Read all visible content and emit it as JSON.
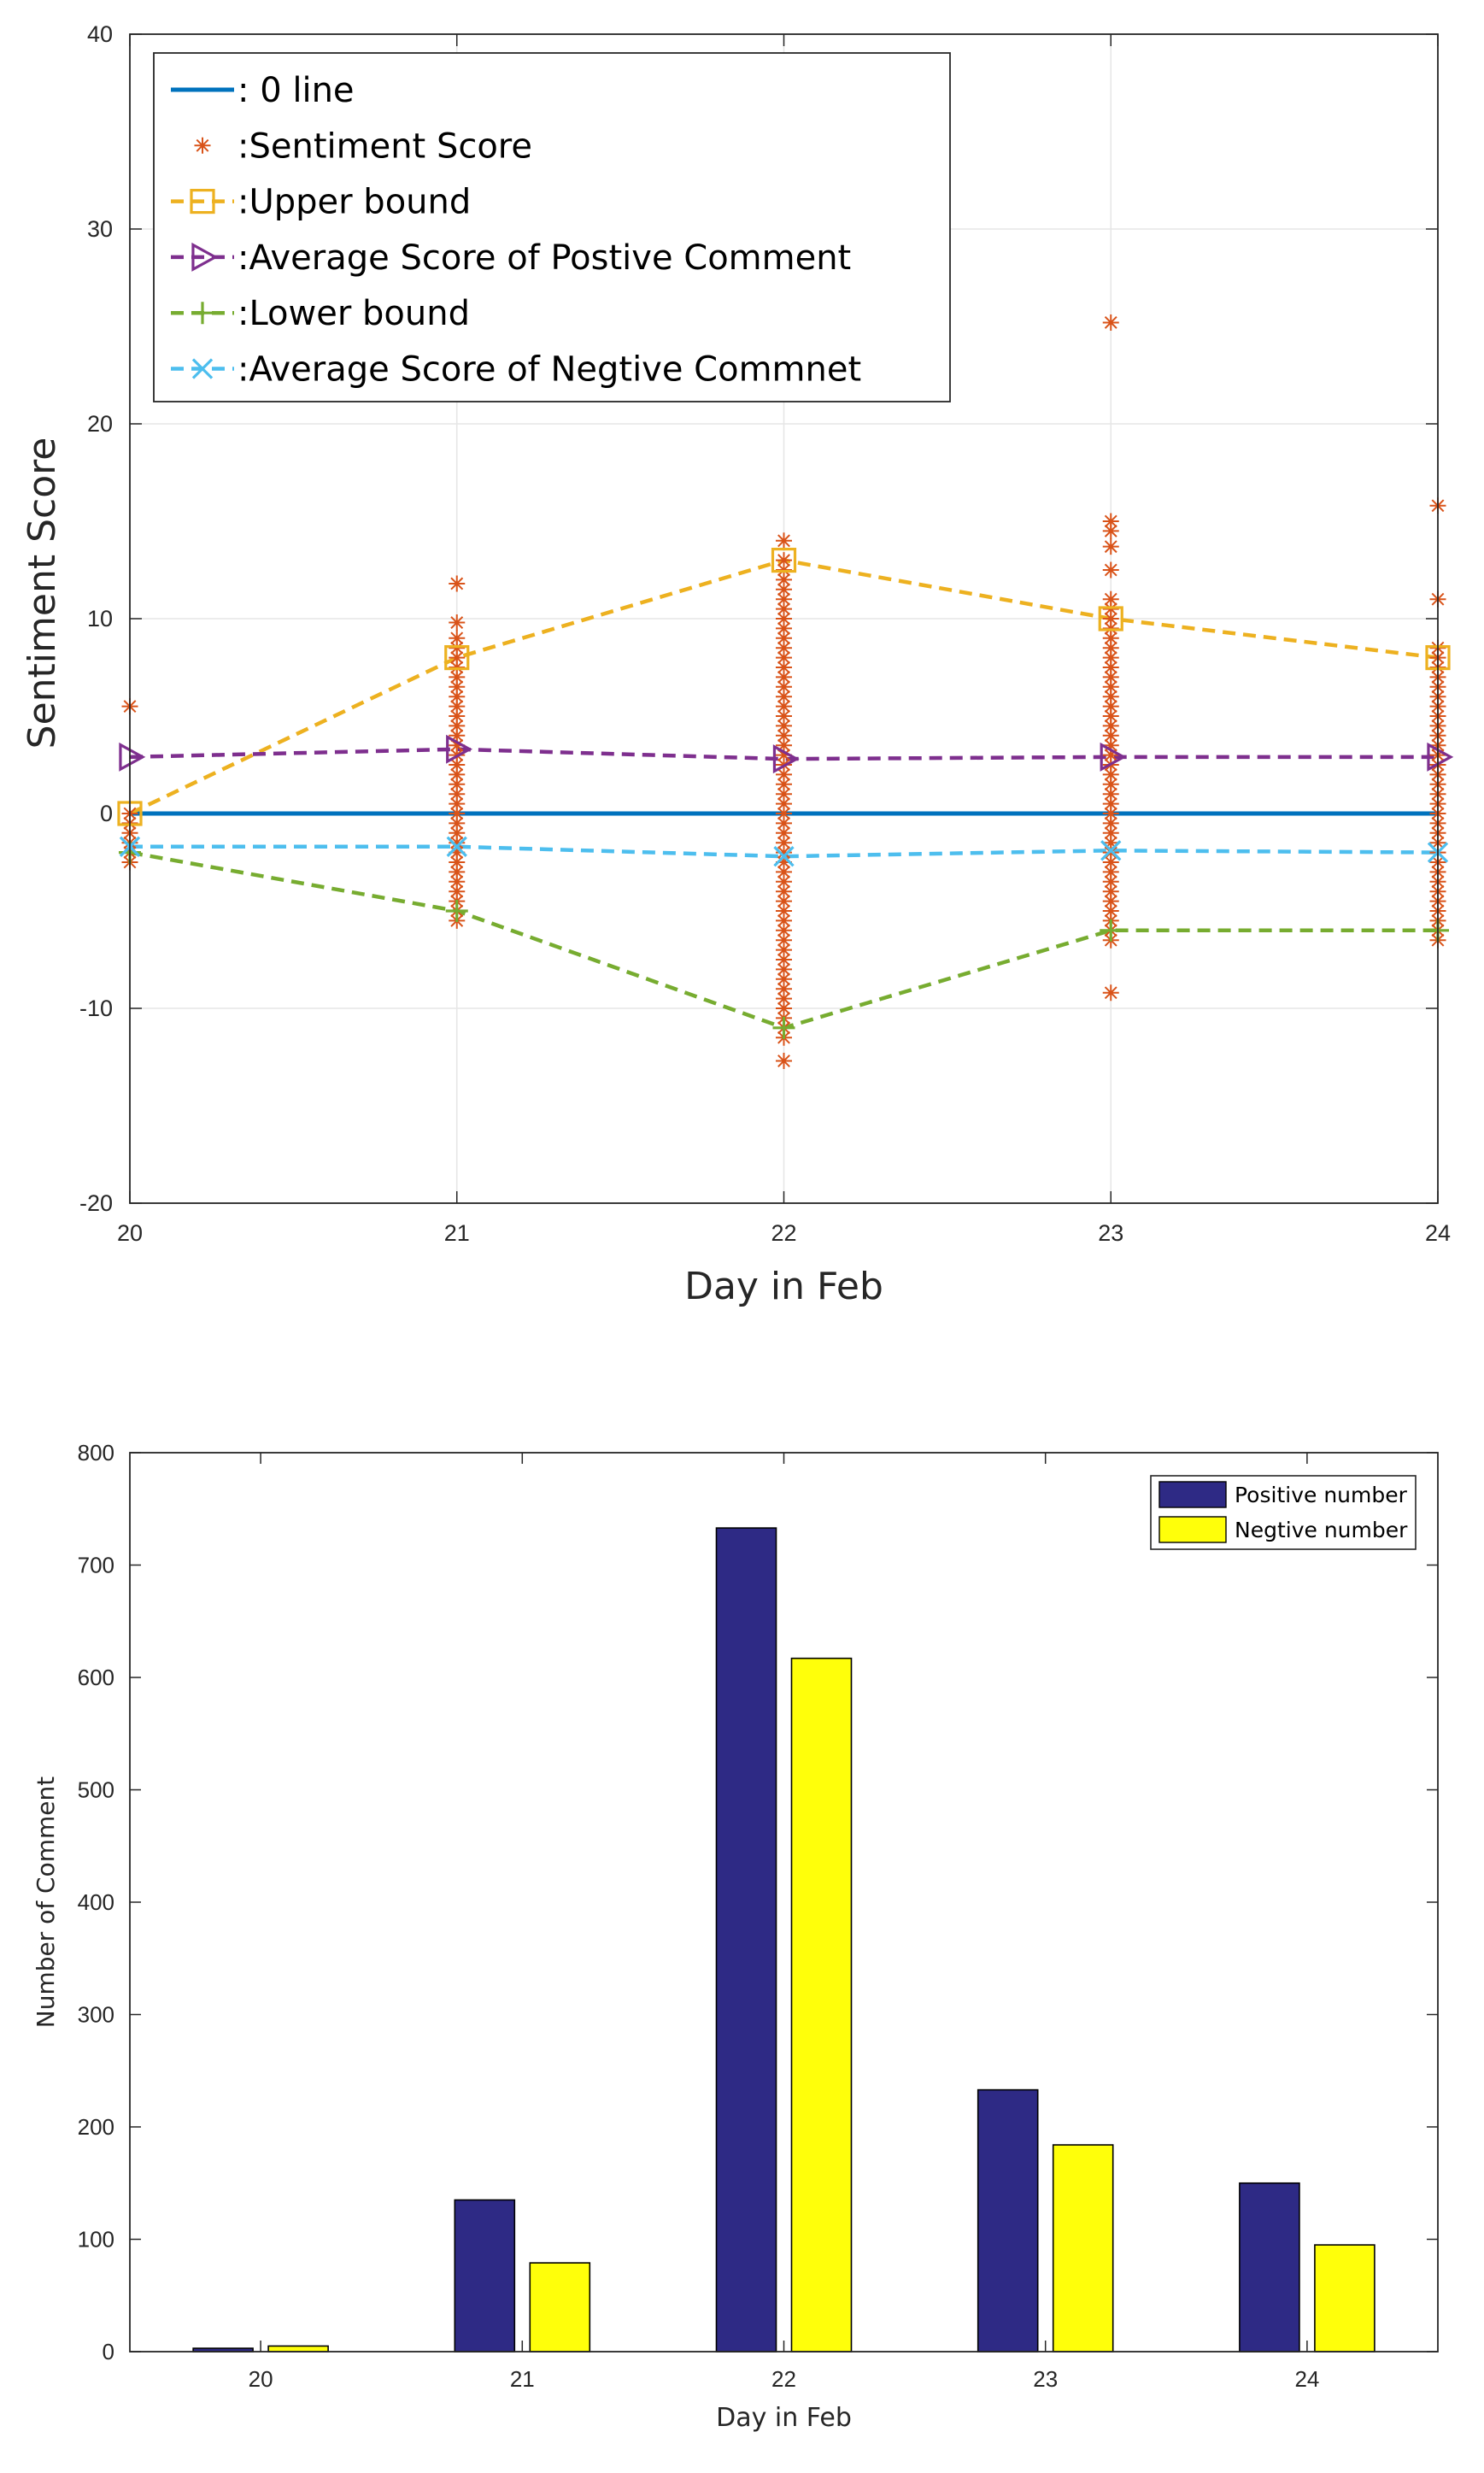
{
  "chart_data": [
    {
      "type": "line",
      "xlabel": "Day in Feb",
      "ylabel": "Sentiment Score",
      "xlim": [
        20,
        24
      ],
      "ylim": [
        -20,
        40
      ],
      "x_ticks": [
        20,
        21,
        22,
        23,
        24
      ],
      "y_ticks": [
        -20,
        -10,
        0,
        10,
        20,
        30,
        40
      ],
      "grid": true,
      "legend_position": "top-left",
      "series": [
        {
          "name": ": 0 line",
          "style": "solid",
          "marker": "none",
          "color": "#0072BD",
          "x": [
            20,
            21,
            22,
            23,
            24
          ],
          "values": [
            0,
            0,
            0,
            0,
            0
          ]
        },
        {
          "name": ":Sentiment Score",
          "style": "none",
          "marker": "asterisk",
          "color": "#D95319",
          "points": [
            {
              "x": 20,
              "ys": [
                5.5,
                0,
                -0.5,
                -1,
                -1.5,
                -2,
                -2.5
              ]
            },
            {
              "x": 21,
              "ys": [
                11.8,
                9.8,
                9,
                8.5,
                8,
                7.5,
                7,
                6.5,
                6,
                5.5,
                5,
                4.5,
                4,
                3.5,
                3,
                2.5,
                2,
                1.5,
                1,
                0.5,
                0,
                -0.5,
                -1,
                -1.5,
                -2,
                -2.5,
                -3,
                -3.5,
                -4,
                -4.5,
                -5,
                -5.5
              ]
            },
            {
              "x": 22,
              "ys": [
                14,
                13,
                12.5,
                12,
                11.5,
                11,
                10.5,
                10,
                9.5,
                9,
                8.5,
                8,
                7.5,
                7,
                6.5,
                6,
                5.5,
                5,
                4.5,
                4,
                3.5,
                3,
                2.5,
                2,
                1.5,
                1,
                0.5,
                0,
                -0.5,
                -1,
                -1.5,
                -2,
                -2.5,
                -3,
                -3.5,
                -4,
                -4.5,
                -5,
                -5.5,
                -6,
                -6.5,
                -7,
                -7.5,
                -8,
                -8.5,
                -9,
                -9.5,
                -10,
                -10.5,
                -11,
                -11.5,
                -12.7
              ]
            },
            {
              "x": 23,
              "ys": [
                25.2,
                15,
                14.5,
                13.7,
                12.5,
                11,
                10.5,
                10,
                9.5,
                9,
                8.5,
                8,
                7.5,
                7,
                6.5,
                6,
                5.5,
                5,
                4.5,
                4,
                3.5,
                3,
                2.5,
                2,
                1.5,
                1,
                0.5,
                0,
                -0.5,
                -1,
                -1.5,
                -2,
                -2.5,
                -3,
                -3.5,
                -4,
                -4.5,
                -5,
                -5.5,
                -6,
                -6.5,
                -9.2
              ]
            },
            {
              "x": 24,
              "ys": [
                15.8,
                11,
                8.5,
                8,
                7.5,
                7,
                6.5,
                6,
                5.5,
                5,
                4.5,
                4,
                3.5,
                3,
                2.5,
                2,
                1.5,
                1,
                0.5,
                0,
                -0.5,
                -1,
                -1.5,
                -2,
                -2.5,
                -3,
                -3.5,
                -4,
                -4.5,
                -5,
                -5.5,
                -6,
                -6.5
              ]
            }
          ]
        },
        {
          "name": ":Upper bound",
          "style": "dashed",
          "marker": "square",
          "color": "#EDB120",
          "x": [
            20,
            21,
            22,
            23,
            24
          ],
          "values": [
            0,
            8,
            13,
            10,
            8
          ]
        },
        {
          "name": ":Average Score of Postive Comment",
          "style": "dashed",
          "marker": "triangle-right",
          "color": "#7E2F8E",
          "x": [
            20,
            21,
            22,
            23,
            24
          ],
          "values": [
            2.9,
            3.3,
            2.8,
            2.9,
            2.9
          ]
        },
        {
          "name": ":Lower bound",
          "style": "dashed",
          "marker": "plus",
          "color": "#77AC30",
          "x": [
            20,
            21,
            22,
            23,
            24
          ],
          "values": [
            -2,
            -5,
            -11,
            -6,
            -6
          ]
        },
        {
          "name": ":Average Score of Negtive Commnet",
          "style": "dashed",
          "marker": "x",
          "color": "#4DBEEE",
          "x": [
            20,
            21,
            22,
            23,
            24
          ],
          "values": [
            -1.7,
            -1.7,
            -2.2,
            -1.9,
            -2
          ]
        }
      ]
    },
    {
      "type": "bar",
      "xlabel": "Day in Feb",
      "ylabel": "Number of Comment",
      "categories": [
        "20",
        "21",
        "22",
        "23",
        "24"
      ],
      "ylim": [
        0,
        800
      ],
      "y_ticks": [
        0,
        100,
        200,
        300,
        400,
        500,
        600,
        700,
        800
      ],
      "grid": false,
      "legend_position": "top-right",
      "series": [
        {
          "name": "Positive number",
          "color": "#2E2A85",
          "values": [
            3,
            135,
            733,
            233,
            150
          ]
        },
        {
          "name": "Negtive number",
          "color": "#FFFF0A",
          "values": [
            5,
            79,
            617,
            184,
            95
          ]
        }
      ]
    }
  ]
}
